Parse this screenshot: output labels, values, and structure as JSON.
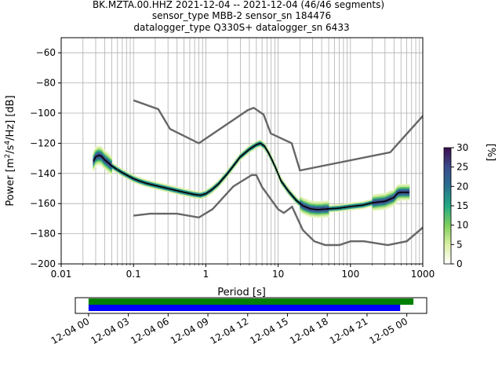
{
  "chart_data": [
    {
      "type": "heatmap",
      "title_lines": [
        "BK.MZTA.00.HHZ   2021-12-04 -- 2021-12-04  (46/46 segments)",
        "sensor_type MBB-2 sensor_sn 184476",
        "datalogger_type Q330S+ datalogger_sn 6433"
      ],
      "xlabel": "Period [s]",
      "ylabel_parts": [
        "Power [m",
        "2",
        "/s",
        "4",
        "/Hz] [dB]"
      ],
      "xscale": "log",
      "xlim": [
        0.01,
        1000
      ],
      "ylim": [
        -200,
        -50
      ],
      "xticks": [
        {
          "value": 0.01,
          "label": "0.01"
        },
        {
          "value": 0.1,
          "label": "0.1"
        },
        {
          "value": 1,
          "label": "1"
        },
        {
          "value": 10,
          "label": "10"
        },
        {
          "value": 100,
          "label": "100"
        },
        {
          "value": 1000,
          "label": "1000"
        }
      ],
      "yticks": [
        {
          "value": -200,
          "label": "−200"
        },
        {
          "value": -180,
          "label": "−180"
        },
        {
          "value": -160,
          "label": "−160"
        },
        {
          "value": -140,
          "label": "−140"
        },
        {
          "value": -120,
          "label": "−120"
        },
        {
          "value": -100,
          "label": "−100"
        },
        {
          "value": -80,
          "label": "−80"
        },
        {
          "value": -60,
          "label": "−60"
        }
      ],
      "grid": true,
      "colorbar": {
        "label": "[%]",
        "range": [
          0,
          30
        ],
        "ticks": [
          "0",
          "5",
          "10",
          "15",
          "20",
          "25",
          "30"
        ],
        "colormap": "pqlx"
      },
      "series": [
        {
          "role": "noise-model-high",
          "color": "#666666",
          "x": [
            0.1,
            0.22,
            0.32,
            0.8,
            3.8,
            4.6,
            6.3,
            7.9,
            15.4,
            20,
            354.8,
            10000
          ],
          "y": [
            -91.5,
            -97.4,
            -110.5,
            -120,
            -98,
            -96.5,
            -101,
            -113.5,
            -120,
            -138,
            -126,
            -48.5
          ]
        },
        {
          "role": "noise-model-low",
          "color": "#666666",
          "x": [
            0.1,
            0.17,
            0.4,
            0.8,
            1.24,
            2.4,
            4.3,
            5,
            6,
            10,
            12,
            15.6,
            21.9,
            31.6,
            45,
            70,
            101,
            154,
            328,
            600,
            10000
          ],
          "y": [
            -168,
            -166.7,
            -166.7,
            -169.2,
            -163.7,
            -148.6,
            -141.1,
            -141.1,
            -149,
            -163.8,
            -166.2,
            -162.1,
            -177.5,
            -185,
            -187.5,
            -187.5,
            -185,
            -185,
            -187.5,
            -185,
            -135
          ]
        },
        {
          "role": "mode",
          "color": "#000000",
          "x": [
            0.028,
            0.03,
            0.033,
            0.036,
            0.04,
            0.045,
            0.05,
            0.06,
            0.07,
            0.08,
            0.1,
            0.12,
            0.15,
            0.2,
            0.3,
            0.5,
            0.7,
            0.85,
            1,
            1.2,
            1.5,
            2,
            2.5,
            3,
            4,
            5,
            5.7,
            6.5,
            7.5,
            9,
            11,
            14,
            18,
            22,
            28,
            35,
            50,
            70,
            100,
            150,
            200,
            300,
            400,
            450,
            500,
            650
          ],
          "y": [
            -132,
            -129,
            -128,
            -128.5,
            -131,
            -133,
            -135,
            -137.5,
            -139.5,
            -141,
            -143.5,
            -145,
            -146.5,
            -148,
            -150,
            -152.5,
            -154,
            -154.5,
            -153.5,
            -151,
            -147,
            -140,
            -134,
            -129,
            -124,
            -121,
            -120,
            -122,
            -127,
            -135,
            -145,
            -152,
            -158,
            -161.5,
            -163.5,
            -164,
            -163.5,
            -163,
            -162,
            -161,
            -159.5,
            -158.5,
            -156,
            -153,
            -152.5,
            -152.5
          ]
        }
      ]
    },
    {
      "type": "timeline",
      "x_tick_labels": [
        "12-04 00",
        "12-04 03",
        "12-04 06",
        "12-04 09",
        "12-04 12",
        "12-04 15",
        "12-04 18",
        "12-04 21",
        "12-05 00"
      ],
      "x_range_hours": [
        -1,
        25.5
      ],
      "bars": [
        {
          "color": "#008000",
          "start_hour": 0,
          "end_hour": 24.5
        },
        {
          "color": "#0000ff",
          "start_hour": 0,
          "end_hour": 23.5
        }
      ]
    }
  ]
}
